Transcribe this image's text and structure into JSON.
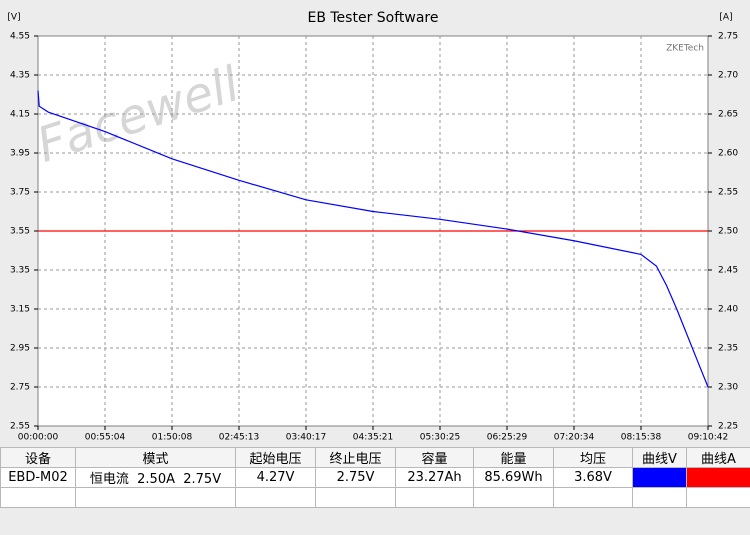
{
  "chart_data": {
    "type": "line",
    "title": "EB Tester Software",
    "y_unit": "[V]",
    "y2_unit": "[A]",
    "watermark": "Facewell",
    "brand": "ZKETech",
    "x": [
      0,
      60,
      500,
      3304,
      6608,
      9913,
      13217,
      16521,
      19825,
      23129,
      26434,
      29738,
      30500,
      31000,
      31500,
      32000,
      32500,
      33042
    ],
    "series": [
      {
        "name": "曲线V",
        "color": "#0000ff",
        "values": [
          4.27,
          4.19,
          4.16,
          4.06,
          3.92,
          3.81,
          3.71,
          3.65,
          3.61,
          3.56,
          3.5,
          3.43,
          3.37,
          3.27,
          3.15,
          3.02,
          2.89,
          2.75
        ]
      },
      {
        "name": "曲线A",
        "color": "#ff0000",
        "axis": "y2",
        "values": [
          2.5,
          2.5,
          2.5,
          2.5,
          2.5,
          2.5,
          2.5,
          2.5,
          2.5,
          2.5,
          2.5,
          2.5,
          2.5,
          2.5,
          2.5,
          2.5,
          2.5,
          2.5
        ]
      }
    ],
    "xlim": [
      0,
      33042
    ],
    "xticks": [
      {
        "value": 0,
        "label": "00:00:00"
      },
      {
        "value": 3304,
        "label": "00:55:04"
      },
      {
        "value": 6608,
        "label": "01:50:08"
      },
      {
        "value": 9913,
        "label": "02:45:13"
      },
      {
        "value": 13217,
        "label": "03:40:17"
      },
      {
        "value": 16521,
        "label": "04:35:21"
      },
      {
        "value": 19825,
        "label": "05:30:25"
      },
      {
        "value": 23129,
        "label": "06:25:29"
      },
      {
        "value": 26434,
        "label": "07:20:34"
      },
      {
        "value": 29738,
        "label": "08:15:38"
      },
      {
        "value": 33042,
        "label": "09:10:42"
      }
    ],
    "ylim": [
      2.55,
      4.55
    ],
    "yticks": [
      2.55,
      2.75,
      2.95,
      3.15,
      3.35,
      3.55,
      3.75,
      3.95,
      4.15,
      4.35,
      4.55
    ],
    "y2lim": [
      2.25,
      2.75
    ],
    "y2ticks": [
      2.25,
      {
        "value": 2.3,
        "label": "2.30"
      },
      2.35,
      {
        "value": 2.4,
        "label": "2.40"
      },
      2.45,
      {
        "value": 2.5,
        "label": "2.50"
      },
      2.55,
      {
        "value": 2.6,
        "label": "2.60"
      },
      2.65,
      {
        "value": 2.7,
        "label": "2.70"
      },
      2.75
    ],
    "grid": true
  },
  "table": {
    "headers": [
      "设备",
      "模式",
      "起始电压",
      "终止电压",
      "容量",
      "能量",
      "均压",
      "曲线V",
      "曲线A"
    ],
    "rows": [
      [
        "EBD-M02",
        "恒电流  2.50A  2.75V",
        "4.27V",
        "2.75V",
        "23.27Ah",
        "85.69Wh",
        "3.68V"
      ]
    ]
  }
}
